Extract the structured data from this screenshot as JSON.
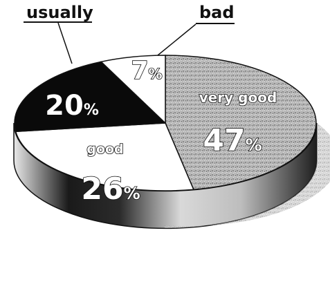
{
  "chart_data": {
    "type": "pie",
    "title": "",
    "slices": [
      {
        "label": "very good",
        "value": 47,
        "display": "47",
        "color": "#a9a9a9"
      },
      {
        "label": "good",
        "value": 26,
        "display": "26",
        "color": "#ffffff"
      },
      {
        "label": "usually",
        "value": 20,
        "display": "20",
        "color": "#0a0a0a"
      },
      {
        "label": "bad",
        "value": 7,
        "display": "7",
        "color": "#ffffff"
      }
    ],
    "percent_symbol": "%",
    "legend": "none"
  }
}
